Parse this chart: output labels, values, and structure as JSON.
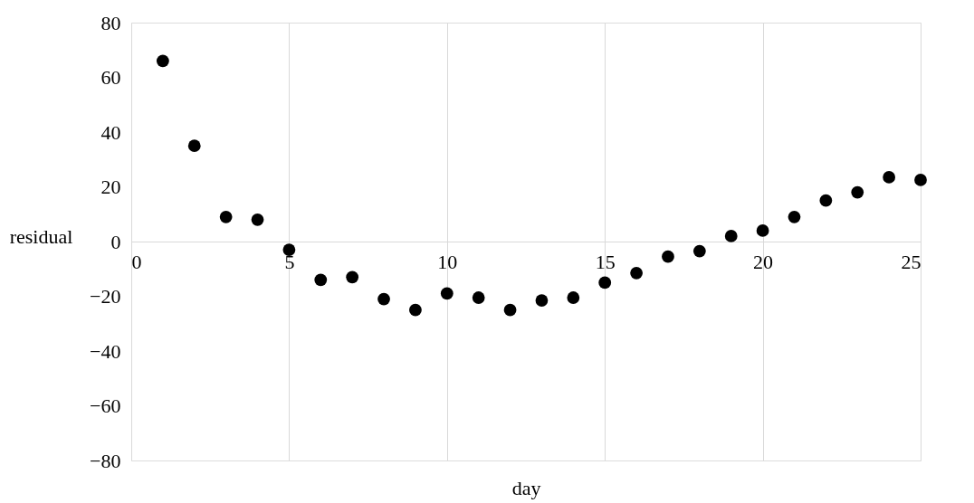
{
  "chart_data": {
    "type": "scatter",
    "xlabel": "day",
    "ylabel": "residual",
    "x": [
      1,
      2,
      3,
      4,
      5,
      6,
      7,
      8,
      9,
      10,
      11,
      12,
      13,
      14,
      15,
      16,
      17,
      18,
      19,
      20,
      21,
      22,
      23,
      24,
      25
    ],
    "series": [
      {
        "color": "#000000",
        "values": [
          66,
          35,
          9,
          8,
          -3,
          -14,
          -13,
          -21,
          -25,
          -19,
          -20.5,
          -25,
          -21.5,
          -20.5,
          -15,
          -11.5,
          -5.5,
          -3.5,
          2,
          4,
          9,
          15,
          18,
          23.5,
          22.5
        ]
      }
    ],
    "xlim": [
      0,
      25
    ],
    "xticks": [
      0,
      5,
      10,
      15,
      20,
      25
    ],
    "ylim": [
      -80,
      80
    ],
    "yticks": [
      -80,
      -60,
      -40,
      -20,
      0,
      20,
      40,
      60,
      80
    ],
    "grid": "x",
    "marker": "circle"
  }
}
